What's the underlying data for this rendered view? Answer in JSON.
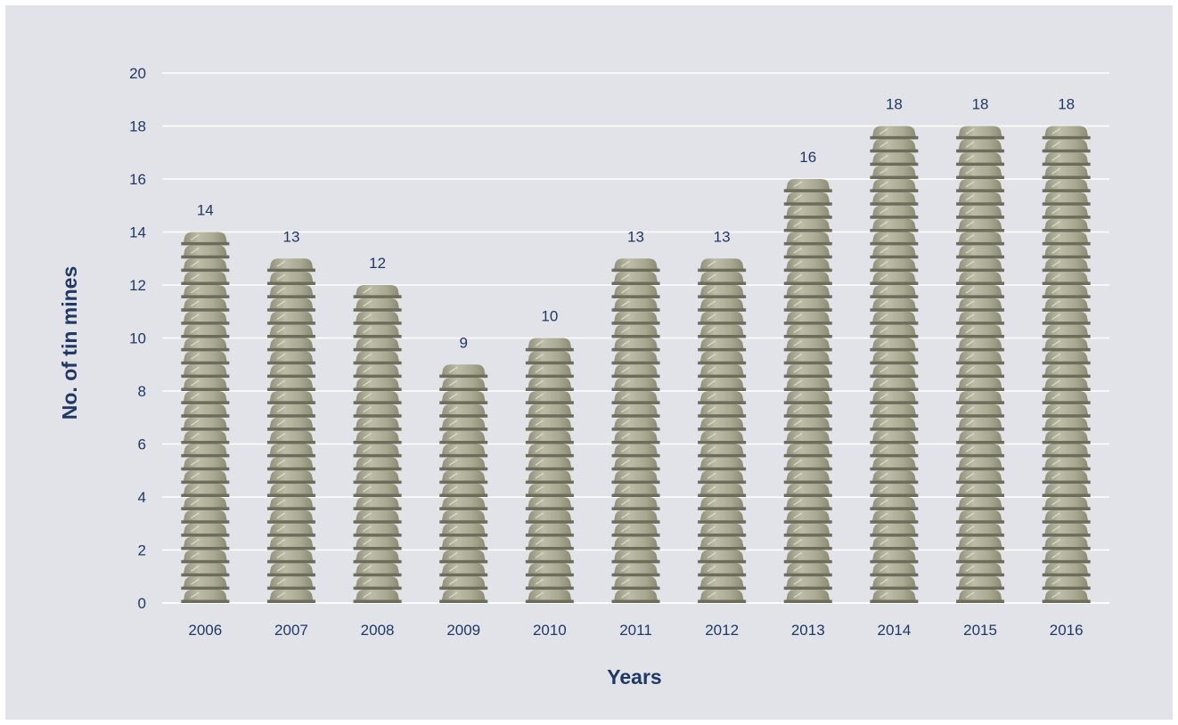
{
  "chart_data": {
    "type": "bar",
    "title": "",
    "xlabel": "Years",
    "ylabel": "No. of tin mines",
    "categories": [
      "2006",
      "2007",
      "2008",
      "2009",
      "2010",
      "2011",
      "2012",
      "2013",
      "2014",
      "2015",
      "2016"
    ],
    "values": [
      14,
      13,
      12,
      9,
      10,
      13,
      13,
      16,
      18,
      18,
      18
    ],
    "ylim": [
      0,
      20
    ],
    "yticks": [
      0,
      2,
      4,
      6,
      8,
      10,
      12,
      14,
      16,
      18,
      20
    ],
    "grid": true,
    "legend": "none",
    "data_labels": true,
    "bar_style": "stacked-pictogram",
    "colors": {
      "background": "#e2e3e8",
      "gridline": "#ffffff",
      "text": "#1f3864",
      "bar_light": "#bdbca8",
      "bar_dark": "#8f8e77",
      "bar_band": "#6d6c5b"
    }
  }
}
